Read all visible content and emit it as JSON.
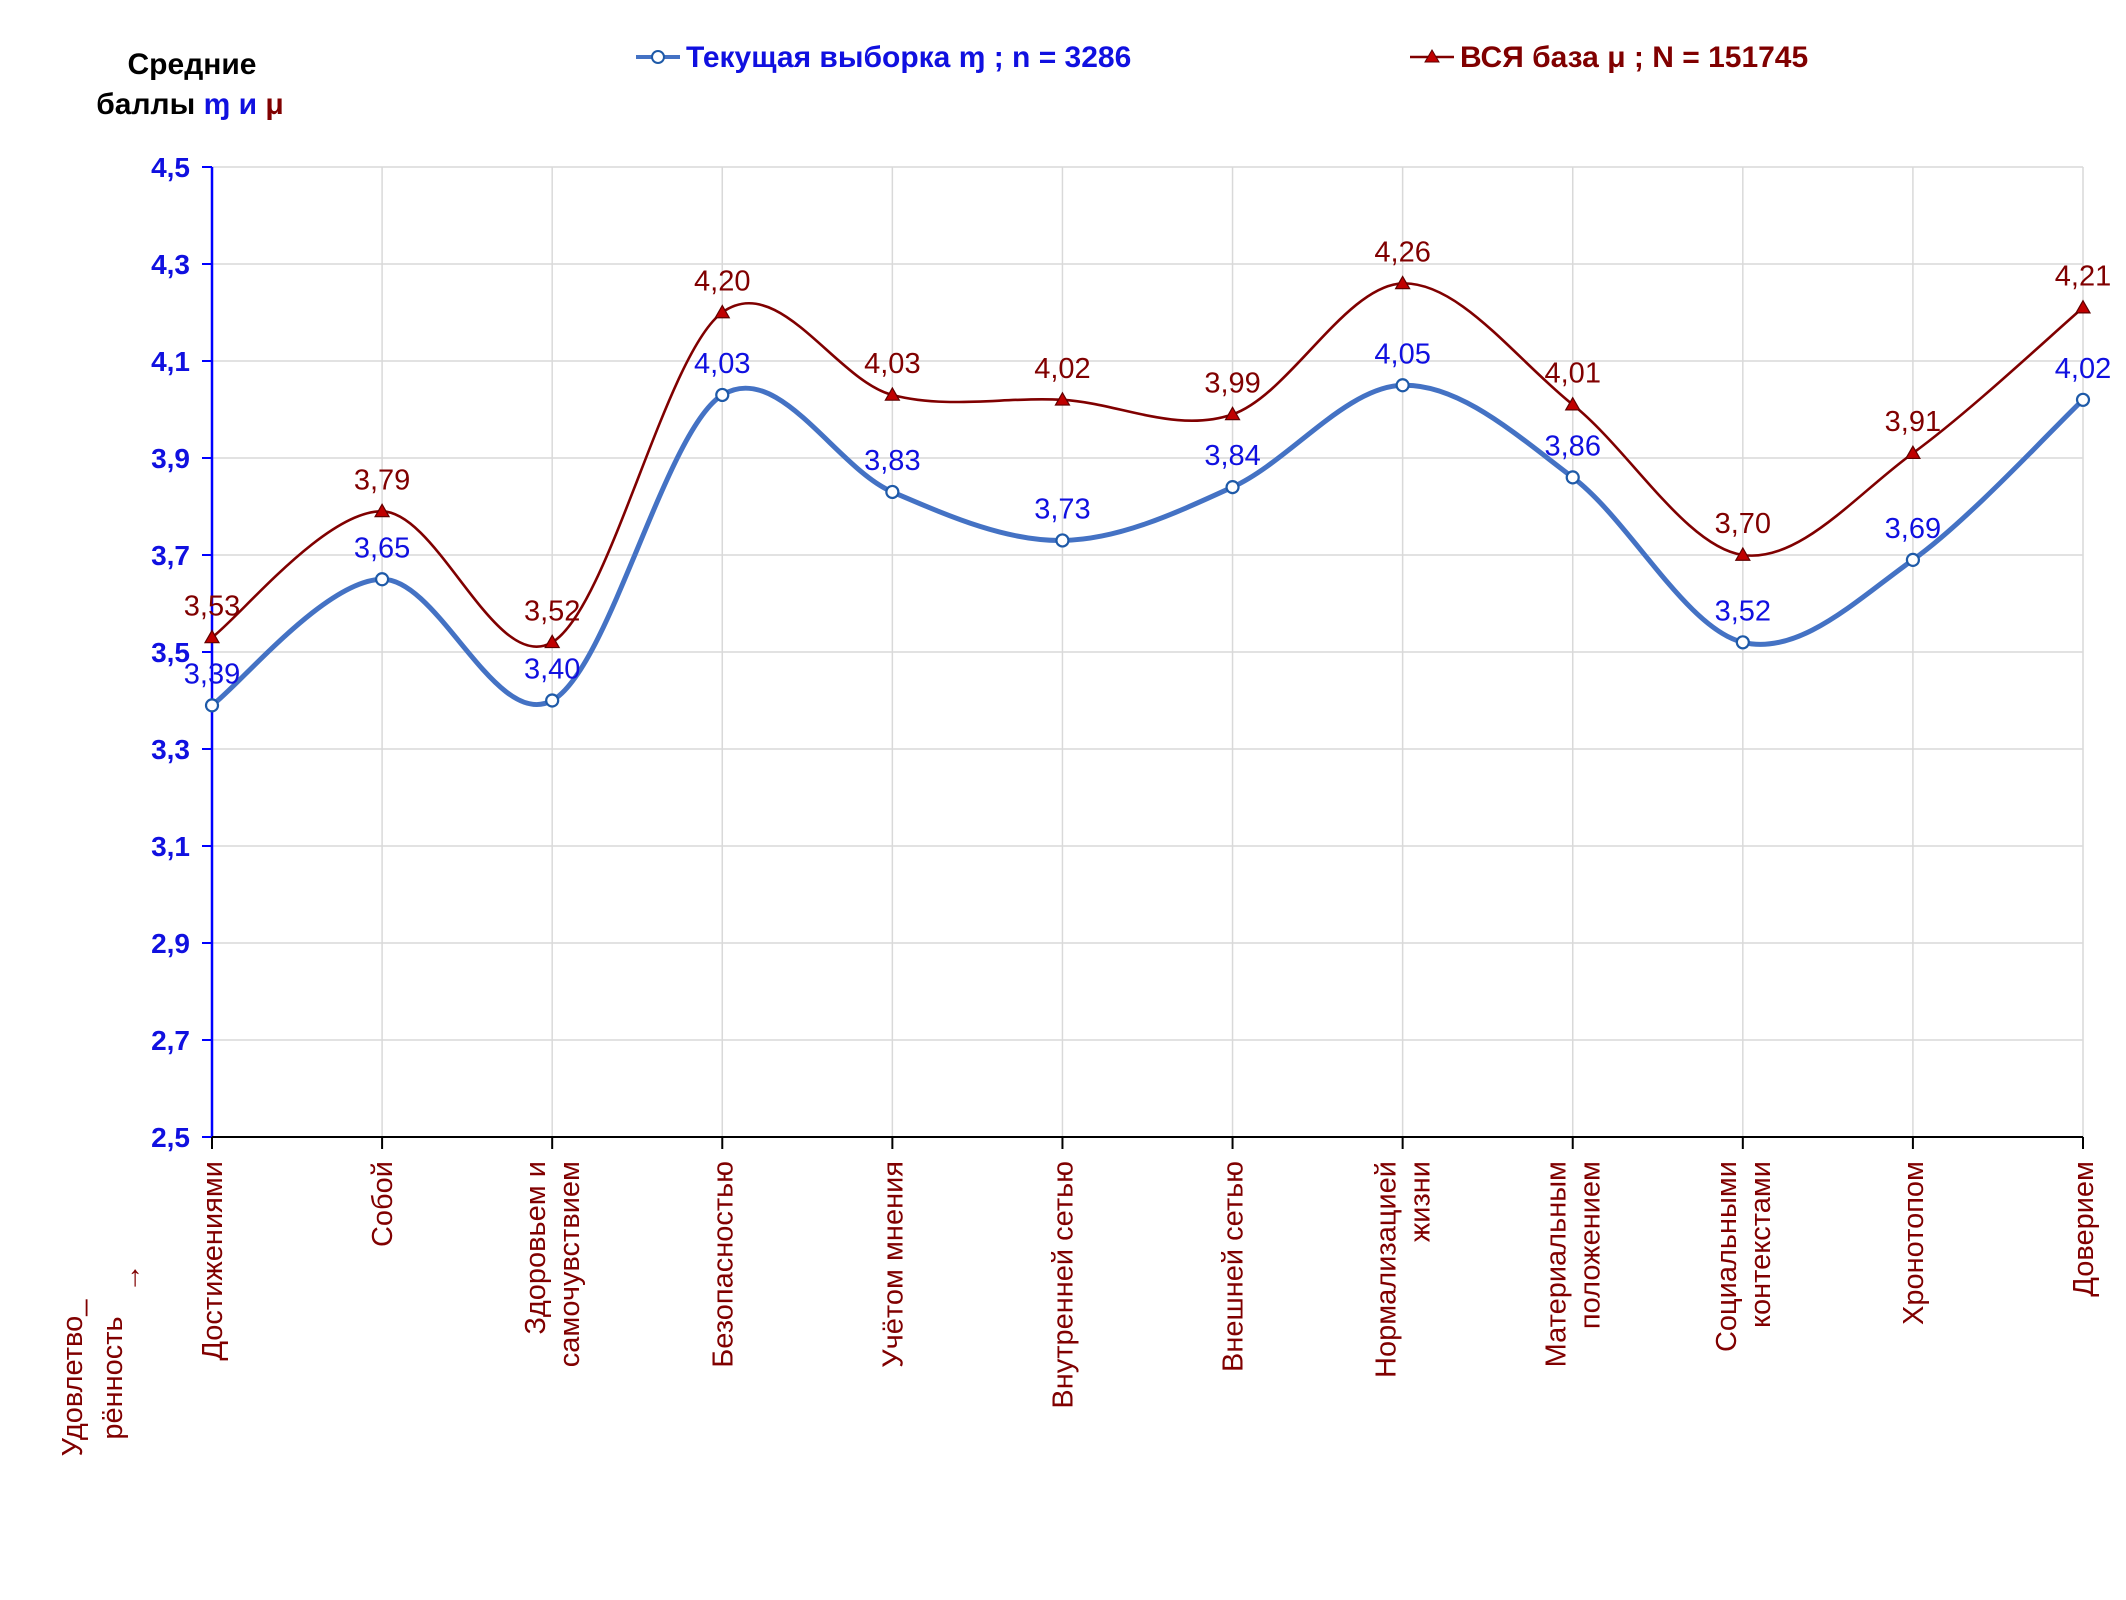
{
  "chart_data": {
    "type": "line",
    "title": "",
    "ylabel_lines": [
      "Средние",
      "баллы"
    ],
    "ylabel_symbols": [
      "ɱ",
      "и",
      "μ"
    ],
    "xlabel_lines": [
      "Удовлетво_",
      "рённость",
      "→"
    ],
    "ylim": [
      2.5,
      4.5
    ],
    "yticks": [
      "2,5",
      "2,7",
      "2,9",
      "3,1",
      "3,3",
      "3,5",
      "3,7",
      "3,9",
      "4,1",
      "4,3",
      "4,5"
    ],
    "grid": true,
    "legend_position": "top",
    "smooth": true,
    "categories": [
      [
        "Достижениями"
      ],
      [
        "Собой"
      ],
      [
        "Здоровьем и",
        "самочувствием"
      ],
      [
        "Безопасностью"
      ],
      [
        "Учётом мнения"
      ],
      [
        "Внутренней сетью"
      ],
      [
        "Внешней сетью"
      ],
      [
        "Нормализацией",
        "жизни"
      ],
      [
        "Материальным",
        "положением"
      ],
      [
        "Социальными",
        "контекстами"
      ],
      [
        "Хронотопом"
      ],
      [
        "Доверием"
      ]
    ],
    "series": [
      {
        "name": "Текущая выборка ɱ ; n = 3286",
        "color": "#4472c4",
        "label_color": "#1010e0",
        "marker": "circle",
        "values": [
          3.39,
          3.65,
          3.4,
          4.03,
          3.83,
          3.73,
          3.84,
          4.05,
          3.86,
          3.52,
          3.69,
          4.02
        ],
        "labels": [
          "3,39",
          "3,65",
          "3,40",
          "4,03",
          "3,83",
          "3,73",
          "3,84",
          "4,05",
          "3,86",
          "3,52",
          "3,69",
          "4,02"
        ]
      },
      {
        "name": "ВСЯ база μ ; N = 151745",
        "color": "#800000",
        "label_color": "#800000",
        "marker": "triangle",
        "values": [
          3.53,
          3.79,
          3.52,
          4.2,
          4.03,
          4.02,
          3.99,
          4.26,
          4.01,
          3.7,
          3.91,
          4.21
        ],
        "labels": [
          "3,53",
          "3,79",
          "3,52",
          "4,20",
          "4,03",
          "4,02",
          "3,99",
          "4,26",
          "4,01",
          "3,70",
          "3,91",
          "4,21"
        ]
      }
    ]
  },
  "colors": {
    "axis": "#0000ff",
    "grid": "#d9d9d9",
    "x_axis": "#000000",
    "symbol_m": "#1010e0",
    "symbol_mu": "#800000"
  }
}
